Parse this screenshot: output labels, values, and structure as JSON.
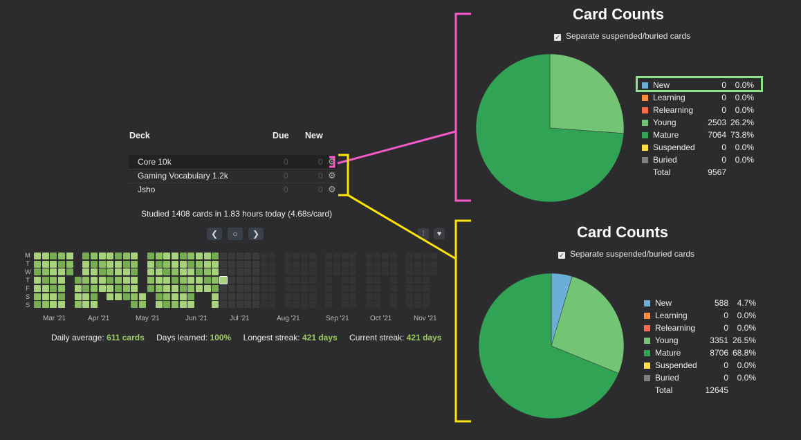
{
  "deck_table": {
    "headers": {
      "deck": "Deck",
      "due": "Due",
      "new": "New"
    },
    "rows": [
      {
        "name": "Core 10k",
        "due": "0",
        "new": "0"
      },
      {
        "name": "Gaming Vocabulary 1.2k",
        "due": "0",
        "new": "0"
      },
      {
        "name": "Jsho",
        "due": "0",
        "new": "0"
      }
    ]
  },
  "studied_text": "Studied 1408 cards in 1.83 hours today (4.68s/card)",
  "heatmap": {
    "day_labels": [
      "M",
      "T",
      "W",
      "T",
      "F",
      "S",
      "S"
    ],
    "months": [
      "Mar '21",
      "Apr '21",
      "May '21",
      "Jun '21",
      "Jul '21",
      "Aug '21",
      "Sep '21",
      "Oct '21",
      "Nov '21"
    ]
  },
  "stats": {
    "daily_average_label": "Daily average:",
    "daily_average_value": "611 cards",
    "days_learned_label": "Days learned:",
    "days_learned_value": "100%",
    "longest_streak_label": "Longest streak:",
    "longest_streak_value": "421 days",
    "current_streak_label": "Current streak:",
    "current_streak_value": "421 days"
  },
  "colors": {
    "new": "#6baed6",
    "learning": "#fd8d3c",
    "relearning": "#fb6a4a",
    "young": "#74c476",
    "mature": "#31a354",
    "suspended": "#ffdc41",
    "buried": "#7f7f7f",
    "pink_bracket": "#f65ac8",
    "yellow_bracket": "#ffe600",
    "highlight": "#8ce38a"
  },
  "card_counts_top": {
    "title": "Card Counts",
    "checkbox_label": "Separate suspended/buried cards",
    "legend": [
      {
        "label": "New",
        "count": "0",
        "percent": "0.0%"
      },
      {
        "label": "Learning",
        "count": "0",
        "percent": "0.0%"
      },
      {
        "label": "Relearning",
        "count": "0",
        "percent": "0.0%"
      },
      {
        "label": "Young",
        "count": "2503",
        "percent": "26.2%"
      },
      {
        "label": "Mature",
        "count": "7064",
        "percent": "73.8%"
      },
      {
        "label": "Suspended",
        "count": "0",
        "percent": "0.0%"
      },
      {
        "label": "Buried",
        "count": "0",
        "percent": "0.0%"
      }
    ],
    "total_label": "Total",
    "total_value": "9567"
  },
  "card_counts_bottom": {
    "title": "Card Counts",
    "checkbox_label": "Separate suspended/buried cards",
    "legend": [
      {
        "label": "New",
        "count": "588",
        "percent": "4.7%"
      },
      {
        "label": "Learning",
        "count": "0",
        "percent": "0.0%"
      },
      {
        "label": "Relearning",
        "count": "0",
        "percent": "0.0%"
      },
      {
        "label": "Young",
        "count": "3351",
        "percent": "26.5%"
      },
      {
        "label": "Mature",
        "count": "8706",
        "percent": "68.8%"
      },
      {
        "label": "Suspended",
        "count": "0",
        "percent": "0.0%"
      },
      {
        "label": "Buried",
        "count": "0",
        "percent": "0.0%"
      }
    ],
    "total_label": "Total",
    "total_value": "12645"
  },
  "chart_data": [
    {
      "type": "pie",
      "title": "Card Counts",
      "categories": [
        "New",
        "Learning",
        "Relearning",
        "Young",
        "Mature",
        "Suspended",
        "Buried"
      ],
      "values": [
        0,
        0,
        0,
        2503,
        7064,
        0,
        0
      ]
    },
    {
      "type": "pie",
      "title": "Card Counts",
      "categories": [
        "New",
        "Learning",
        "Relearning",
        "Young",
        "Mature",
        "Suspended",
        "Buried"
      ],
      "values": [
        588,
        0,
        0,
        3351,
        8706,
        0,
        0
      ]
    }
  ]
}
